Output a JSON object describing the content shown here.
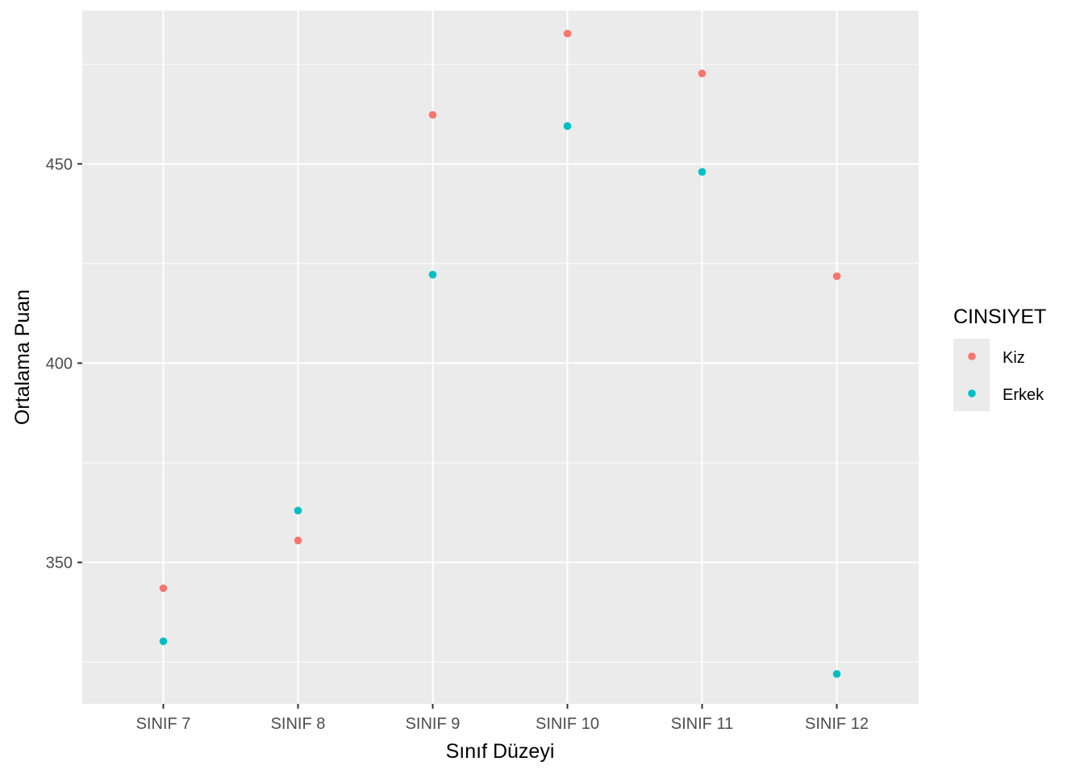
{
  "chart_data": {
    "type": "scatter",
    "title": "",
    "xlabel": "Sınıf Düzeyi",
    "ylabel": "Ortalama Puan",
    "categories": [
      "SINIF 7",
      "SINIF 8",
      "SINIF 9",
      "SINIF 10",
      "SINIF 11",
      "SINIF 12"
    ],
    "ylim": [
      314.5,
      488.5
    ],
    "yticks": [
      350,
      400,
      450
    ],
    "y_minor_ticks": [
      325,
      375,
      425,
      475
    ],
    "grid": true,
    "legend": {
      "title": "CINSIYET",
      "position": "right",
      "entries": [
        "Kiz",
        "Erkek"
      ]
    },
    "series": [
      {
        "name": "Kiz",
        "color": "#F8766D",
        "values": [
          343.5,
          355.5,
          462.3,
          482.7,
          472.7,
          421.8
        ]
      },
      {
        "name": "Erkek",
        "color": "#00BFC4",
        "values": [
          330.2,
          363.0,
          422.2,
          459.5,
          448.0,
          322.0
        ]
      }
    ]
  }
}
